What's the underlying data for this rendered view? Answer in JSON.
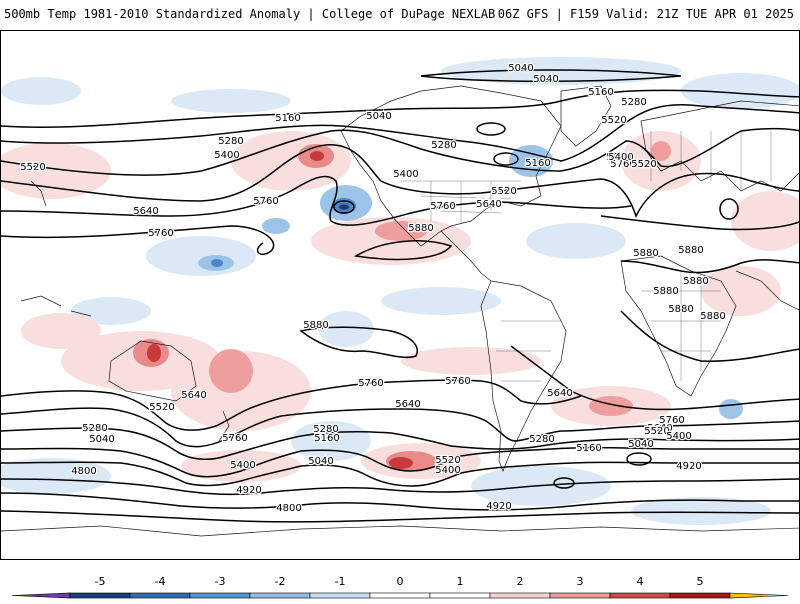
{
  "header": {
    "title_left": "500mb Temp 1981-2010 Standardized Anomaly | College of DuPage NEXLAB",
    "title_right": "06Z GFS | F159 Valid: 21Z TUE APR 01 2025"
  },
  "colorbar": {
    "ticks": [
      "-5",
      "-4",
      "-3",
      "-2",
      "-1",
      "0",
      "1",
      "2",
      "3",
      "4",
      "5"
    ],
    "colors": [
      "#6a3d9a",
      "#1f3f7a",
      "#2f6cb0",
      "#4f95d0",
      "#8fbde6",
      "#c9e0f4",
      "#ffffff",
      "#ffffff",
      "#f7d0d0",
      "#ec9a9a",
      "#d24848",
      "#a51616",
      "#f5c200"
    ]
  },
  "contour_labels": [
    {
      "text": "5040"
    },
    {
      "text": "5040"
    },
    {
      "text": "5160"
    },
    {
      "text": "5280"
    },
    {
      "text": "5160"
    },
    {
      "text": "5040"
    },
    {
      "text": "5520"
    },
    {
      "text": "5280"
    },
    {
      "text": "5400"
    },
    {
      "text": "5520"
    },
    {
      "text": "5640"
    },
    {
      "text": "5760"
    },
    {
      "text": "5760"
    },
    {
      "text": "5400"
    },
    {
      "text": "5880"
    },
    {
      "text": "5760"
    },
    {
      "text": "5640"
    },
    {
      "text": "5520"
    },
    {
      "text": "5280"
    },
    {
      "text": "5160"
    },
    {
      "text": "5400"
    },
    {
      "text": "5640"
    },
    {
      "text": "5520"
    },
    {
      "text": "5640"
    },
    {
      "text": "5760"
    },
    {
      "text": "5880"
    },
    {
      "text": "5880"
    },
    {
      "text": "5880"
    },
    {
      "text": "5880"
    },
    {
      "text": "5880"
    },
    {
      "text": "5880"
    },
    {
      "text": "5880"
    },
    {
      "text": "5880"
    },
    {
      "text": "5760"
    },
    {
      "text": "5640"
    },
    {
      "text": "5520"
    },
    {
      "text": "5280"
    },
    {
      "text": "5040"
    },
    {
      "text": "4800"
    },
    {
      "text": "5640"
    },
    {
      "text": "5760"
    },
    {
      "text": "5400"
    },
    {
      "text": "5280"
    },
    {
      "text": "5160"
    },
    {
      "text": "5040"
    },
    {
      "text": "4920"
    },
    {
      "text": "4800"
    },
    {
      "text": "5760"
    },
    {
      "text": "5640"
    },
    {
      "text": "5520"
    },
    {
      "text": "5400"
    },
    {
      "text": "5280"
    },
    {
      "text": "5160"
    },
    {
      "text": "5040"
    },
    {
      "text": "4920"
    },
    {
      "text": "5640"
    },
    {
      "text": "5760"
    },
    {
      "text": "5520"
    },
    {
      "text": "5400"
    },
    {
      "text": "4920"
    }
  ]
}
